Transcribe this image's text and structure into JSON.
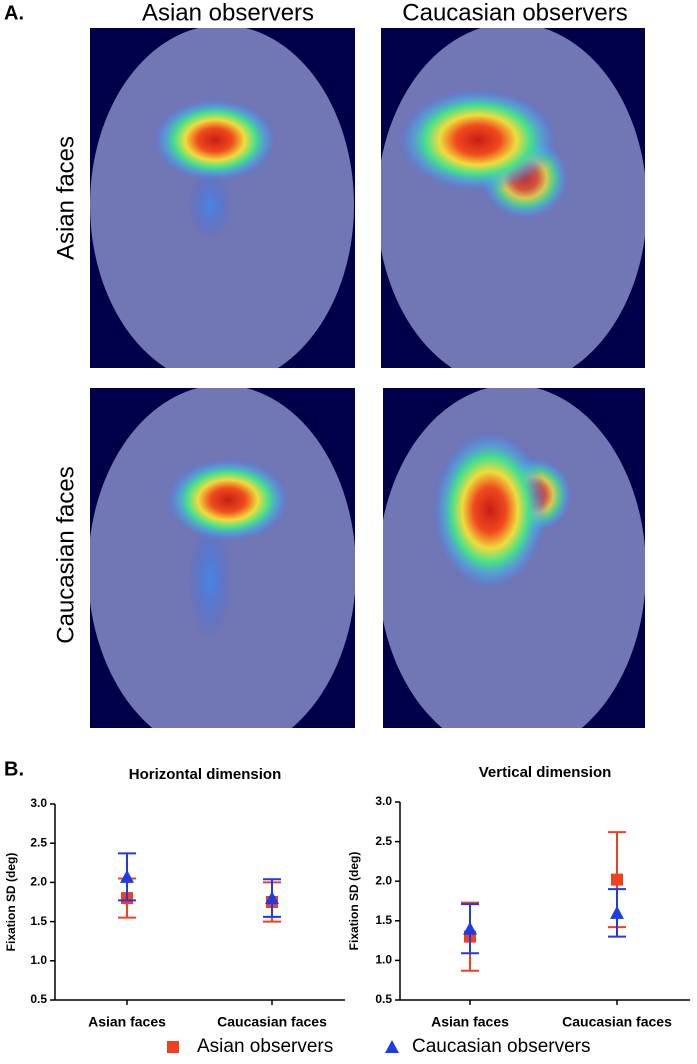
{
  "figure": {
    "panel_a_label": "A.",
    "panel_b_label": "B.",
    "columns": [
      "Asian observers",
      "Caucasian observers"
    ],
    "rows": [
      "Asian faces",
      "Caucasian faces"
    ]
  },
  "chart_data": [
    {
      "type": "errorbar",
      "title": "Horizontal dimension",
      "y_label": "Fixation SD (deg)",
      "categories": [
        "Asian faces",
        "Caucasian faces"
      ],
      "series": [
        {
          "name": "Asian observers",
          "color": "#f0401e",
          "marker": "square",
          "values": [
            1.8,
            1.75
          ],
          "errors": [
            0.25,
            0.25
          ]
        },
        {
          "name": "Caucasian observers",
          "color": "#1e3ce6",
          "marker": "triangle",
          "values": [
            2.07,
            1.8
          ],
          "errors": [
            0.3,
            0.24
          ]
        }
      ],
      "ylim": [
        0.5,
        3.0
      ],
      "yticks": [
        0.5,
        {
          "value": 1,
          "label": "1.0"
        },
        1.5,
        {
          "value": 2,
          "label": "2.0"
        },
        2.5,
        {
          "value": 3,
          "label": "3.0"
        }
      ]
    },
    {
      "type": "errorbar",
      "title": "Vertical dimension",
      "y_label": "Fixation SD (deg)",
      "categories": [
        "Asian faces",
        "Caucasian faces"
      ],
      "series": [
        {
          "name": "Asian observers",
          "color": "#f0401e",
          "marker": "square",
          "values": [
            1.3,
            2.02
          ],
          "errors": [
            0.43,
            0.6
          ]
        },
        {
          "name": "Caucasian observers",
          "color": "#1e3ce6",
          "marker": "triangle",
          "values": [
            1.4,
            1.6
          ],
          "errors": [
            0.31,
            0.3
          ]
        }
      ],
      "ylim": [
        0.5,
        3.0
      ],
      "yticks": [
        0.5,
        {
          "value": 1,
          "label": "1.0"
        },
        1.5,
        {
          "value": 2,
          "label": "2.0"
        },
        2.5,
        {
          "value": 3,
          "label": "3.0"
        }
      ]
    }
  ]
}
